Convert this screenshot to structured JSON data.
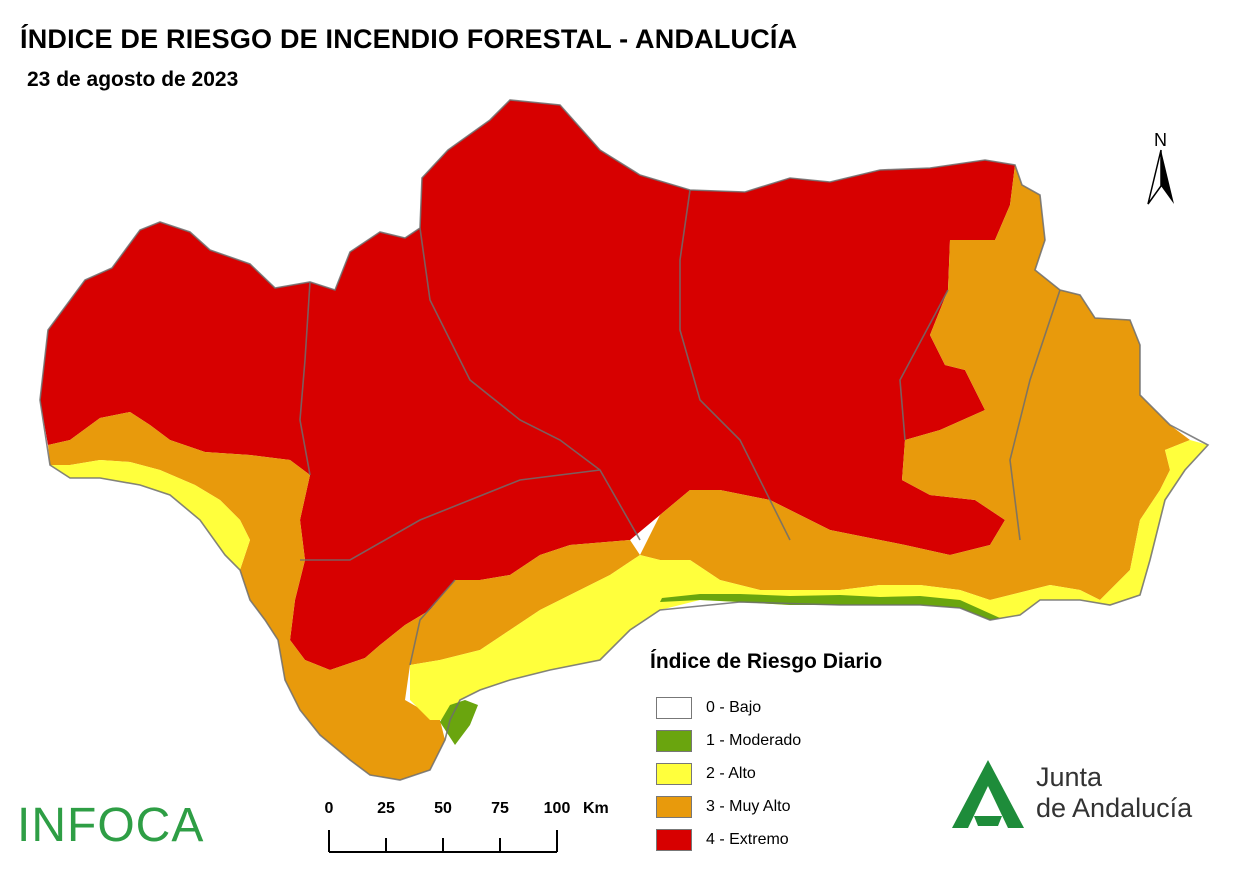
{
  "header": {
    "title": "ÍNDICE DE RIESGO DE INCENDIO FORESTAL - ANDALUCÍA",
    "date": "23 de agosto de 2023"
  },
  "north_arrow": {
    "label": "N"
  },
  "legend": {
    "title": "Índice de Riesgo Diario",
    "items": [
      {
        "label": "0 - Bajo",
        "color": "#ffffff"
      },
      {
        "label": "1 - Moderado",
        "color": "#6aa50e"
      },
      {
        "label": "2 - Alto",
        "color": "#ffff3c"
      },
      {
        "label": "3 - Muy Alto",
        "color": "#e89a0c"
      },
      {
        "label": "4 - Extremo",
        "color": "#d70000"
      }
    ]
  },
  "scale_bar": {
    "ticks": [
      "0",
      "25",
      "50",
      "75",
      "100"
    ],
    "unit": "Km"
  },
  "logos": {
    "infoca": "INFOCA",
    "junta_line1": "Junta",
    "junta_line2": "de Andalucía"
  },
  "colors": {
    "extreme": "#d70000",
    "very_high": "#e89a0c",
    "high": "#ffff3c",
    "moderate": "#6aa50e",
    "boundaries": "#6e6e6e"
  }
}
